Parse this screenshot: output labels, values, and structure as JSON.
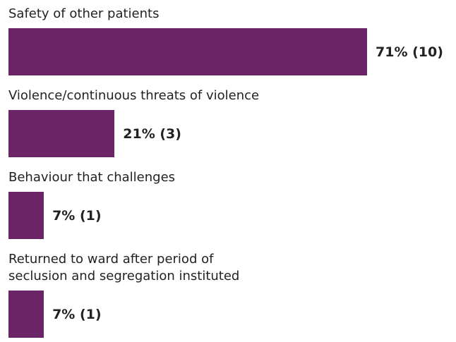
{
  "chart_data": {
    "type": "bar",
    "orientation": "horizontal",
    "categories": [
      "Safety of other patients",
      "Violence/continuous threats of violence",
      "Behaviour that challenges",
      "Returned to ward after period of\nseclusion and segregation instituted"
    ],
    "values": [
      71,
      21,
      7,
      7
    ],
    "value_labels": [
      "71% (10)",
      "21% (3)",
      "7% (1)",
      "7% (1)"
    ],
    "color": "#6b2466"
  }
}
